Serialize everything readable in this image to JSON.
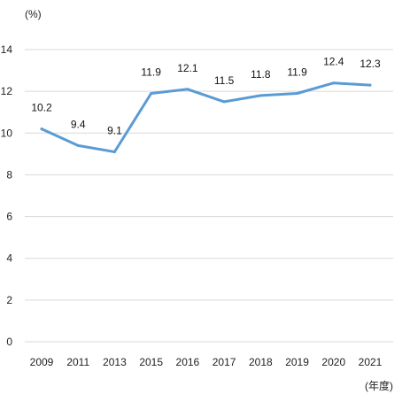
{
  "chart_data": {
    "type": "line",
    "title": "",
    "ylabel": "(%)",
    "xlabel": "(年度)",
    "x": [
      "2009",
      "2011",
      "2013",
      "2015",
      "2016",
      "2017",
      "2018",
      "2019",
      "2020",
      "2021"
    ],
    "series": [
      {
        "values": [
          10.2,
          9.4,
          9.1,
          11.9,
          12.1,
          11.5,
          11.8,
          11.9,
          12.4,
          12.3
        ],
        "color": "#5b9bd5"
      }
    ],
    "data_labels": [
      "10.2",
      "9.4",
      "9.1",
      "11.9",
      "12.1",
      "11.5",
      "11.8",
      "11.9",
      "12.4",
      "12.3"
    ],
    "yticks": [
      "0",
      "2",
      "4",
      "6",
      "8",
      "10",
      "12",
      "14"
    ],
    "ylim": [
      0,
      14
    ],
    "grid": true,
    "legend": "none"
  }
}
